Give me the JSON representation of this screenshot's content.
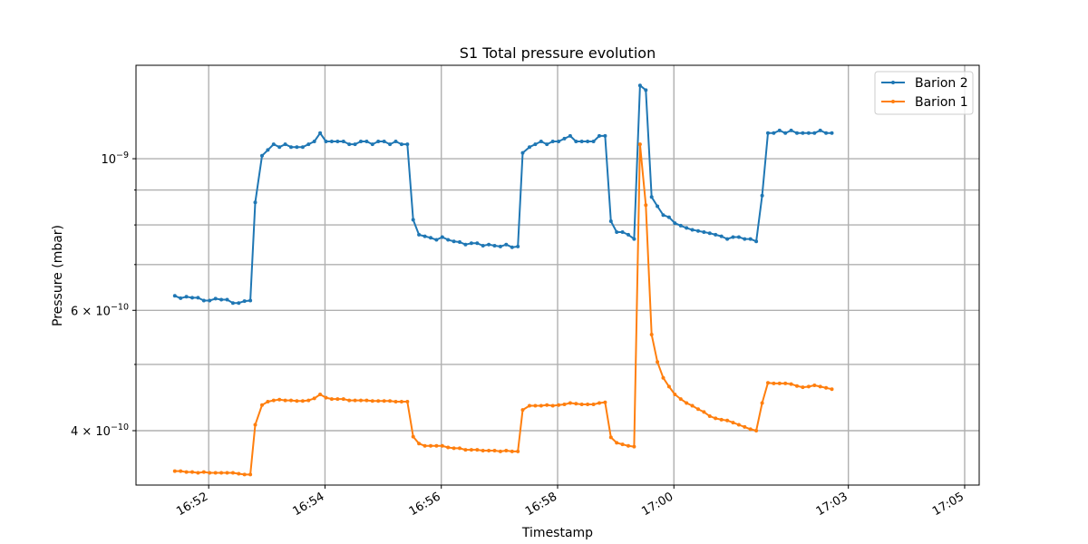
{
  "chart_data": {
    "type": "line",
    "title": "S1 Total pressure evolution",
    "xlabel": "Timestamp",
    "ylabel": "Pressure (mbar)",
    "x_axis": {
      "type": "time",
      "date": "2000-01-01",
      "range": [
        "16:50:45",
        "17:05:15"
      ],
      "ticks": [
        "16:52",
        "16:54",
        "16:56",
        "16:58",
        "17:00",
        "17:03",
        "17:05"
      ]
    },
    "y_axis": {
      "scale": "log",
      "range": [
        3.33e-10,
        1.37e-09
      ],
      "major_ticks": [
        {
          "value": 1e-09,
          "label": "10^-9"
        },
        {
          "value": 6e-10,
          "label": "6×10^-10"
        },
        {
          "value": 4e-10,
          "label": "4×10^-10"
        }
      ],
      "minor_grid_values": [
        3e-10,
        5e-10,
        7e-10,
        8e-10,
        9e-10
      ]
    },
    "grid": true,
    "legend_placement": "top-right",
    "series": [
      {
        "name": "Barion 2",
        "color": "#1f77b4",
        "points": [
          [
            "16:51:25",
            6.3e-10
          ],
          [
            "16:51:31",
            6.25e-10
          ],
          [
            "16:51:37",
            6.28e-10
          ],
          [
            "16:51:43",
            6.26e-10
          ],
          [
            "16:51:49",
            6.26e-10
          ],
          [
            "16:51:55",
            6.2e-10
          ],
          [
            "16:52:01",
            6.2e-10
          ],
          [
            "16:52:07",
            6.24e-10
          ],
          [
            "16:52:13",
            6.22e-10
          ],
          [
            "16:52:19",
            6.22e-10
          ],
          [
            "16:52:25",
            6.15e-10
          ],
          [
            "16:52:31",
            6.15e-10
          ],
          [
            "16:52:37",
            6.19e-10
          ],
          [
            "16:52:43",
            6.2e-10
          ],
          [
            "16:52:48",
            8.63e-10
          ],
          [
            "16:52:55",
            1.01e-09
          ],
          [
            "16:53:01",
            1.03e-09
          ],
          [
            "16:53:07",
            1.05e-09
          ],
          [
            "16:53:13",
            1.04e-09
          ],
          [
            "16:53:19",
            1.05e-09
          ],
          [
            "16:53:25",
            1.04e-09
          ],
          [
            "16:53:31",
            1.04e-09
          ],
          [
            "16:53:37",
            1.04e-09
          ],
          [
            "16:53:43",
            1.05e-09
          ],
          [
            "16:53:49",
            1.06e-09
          ],
          [
            "16:53:55",
            1.09e-09
          ],
          [
            "16:54:01",
            1.06e-09
          ],
          [
            "16:54:07",
            1.06e-09
          ],
          [
            "16:54:13",
            1.06e-09
          ],
          [
            "16:54:19",
            1.06e-09
          ],
          [
            "16:54:25",
            1.05e-09
          ],
          [
            "16:54:31",
            1.05e-09
          ],
          [
            "16:54:37",
            1.06e-09
          ],
          [
            "16:54:43",
            1.06e-09
          ],
          [
            "16:54:49",
            1.05e-09
          ],
          [
            "16:54:55",
            1.06e-09
          ],
          [
            "16:55:01",
            1.06e-09
          ],
          [
            "16:55:07",
            1.05e-09
          ],
          [
            "16:55:13",
            1.06e-09
          ],
          [
            "16:55:19",
            1.05e-09
          ],
          [
            "16:55:25",
            1.05e-09
          ],
          [
            "16:55:31",
            8.14e-10
          ],
          [
            "16:55:37",
            7.74e-10
          ],
          [
            "16:55:43",
            7.7e-10
          ],
          [
            "16:55:49",
            7.66e-10
          ],
          [
            "16:55:55",
            7.61e-10
          ],
          [
            "16:56:01",
            7.68e-10
          ],
          [
            "16:56:07",
            7.61e-10
          ],
          [
            "16:56:13",
            7.57e-10
          ],
          [
            "16:56:19",
            7.55e-10
          ],
          [
            "16:56:25",
            7.49e-10
          ],
          [
            "16:56:31",
            7.52e-10
          ],
          [
            "16:56:37",
            7.52e-10
          ],
          [
            "16:56:43",
            7.46e-10
          ],
          [
            "16:56:49",
            7.49e-10
          ],
          [
            "16:56:55",
            7.46e-10
          ],
          [
            "16:57:01",
            7.44e-10
          ],
          [
            "16:57:07",
            7.49e-10
          ],
          [
            "16:57:13",
            7.42e-10
          ],
          [
            "16:57:19",
            7.44e-10
          ],
          [
            "16:57:24",
            1.02e-09
          ],
          [
            "16:57:31",
            1.04e-09
          ],
          [
            "16:57:37",
            1.05e-09
          ],
          [
            "16:57:43",
            1.06e-09
          ],
          [
            "16:57:49",
            1.05e-09
          ],
          [
            "16:57:55",
            1.06e-09
          ],
          [
            "16:58:01",
            1.06e-09
          ],
          [
            "16:58:07",
            1.07e-09
          ],
          [
            "16:58:13",
            1.08e-09
          ],
          [
            "16:58:19",
            1.06e-09
          ],
          [
            "16:58:25",
            1.06e-09
          ],
          [
            "16:58:31",
            1.06e-09
          ],
          [
            "16:58:37",
            1.06e-09
          ],
          [
            "16:58:43",
            1.08e-09
          ],
          [
            "16:58:49",
            1.08e-09
          ],
          [
            "16:58:55",
            8.1e-10
          ],
          [
            "16:59:01",
            7.81e-10
          ],
          [
            "16:59:07",
            7.81e-10
          ],
          [
            "16:59:13",
            7.74e-10
          ],
          [
            "16:59:19",
            7.63e-10
          ],
          [
            "16:59:25",
            1.28e-09
          ],
          [
            "16:59:31",
            1.26e-09
          ],
          [
            "16:59:37",
            8.79e-10
          ],
          [
            "16:59:43",
            8.52e-10
          ],
          [
            "16:59:49",
            8.27e-10
          ],
          [
            "16:59:55",
            8.21e-10
          ],
          [
            "17:00:01",
            8.05e-10
          ],
          [
            "17:00:07",
            7.98e-10
          ],
          [
            "17:00:13",
            7.92e-10
          ],
          [
            "17:00:19",
            7.87e-10
          ],
          [
            "17:00:25",
            7.84e-10
          ],
          [
            "17:00:31",
            7.81e-10
          ],
          [
            "17:00:37",
            7.78e-10
          ],
          [
            "17:00:43",
            7.74e-10
          ],
          [
            "17:00:49",
            7.7e-10
          ],
          [
            "17:00:55",
            7.63e-10
          ],
          [
            "17:01:01",
            7.68e-10
          ],
          [
            "17:01:07",
            7.68e-10
          ],
          [
            "17:01:13",
            7.63e-10
          ],
          [
            "17:01:19",
            7.63e-10
          ],
          [
            "17:01:25",
            7.57e-10
          ],
          [
            "17:01:31",
            8.83e-10
          ],
          [
            "17:01:37",
            1.09e-09
          ],
          [
            "17:01:43",
            1.09e-09
          ],
          [
            "17:01:49",
            1.1e-09
          ],
          [
            "17:01:55",
            1.09e-09
          ],
          [
            "17:02:01",
            1.1e-09
          ],
          [
            "17:02:07",
            1.09e-09
          ],
          [
            "17:02:13",
            1.09e-09
          ],
          [
            "17:02:19",
            1.09e-09
          ],
          [
            "17:02:25",
            1.09e-09
          ],
          [
            "17:02:31",
            1.1e-09
          ],
          [
            "17:02:37",
            1.09e-09
          ],
          [
            "17:02:43",
            1.09e-09
          ]
        ]
      },
      {
        "name": "Barion 1",
        "color": "#ff7f0e",
        "points": [
          [
            "16:51:25",
            3.49e-10
          ],
          [
            "16:51:31",
            3.49e-10
          ],
          [
            "16:51:37",
            3.48e-10
          ],
          [
            "16:51:43",
            3.48e-10
          ],
          [
            "16:51:49",
            3.47e-10
          ],
          [
            "16:51:55",
            3.48e-10
          ],
          [
            "16:52:01",
            3.47e-10
          ],
          [
            "16:52:07",
            3.47e-10
          ],
          [
            "16:52:13",
            3.47e-10
          ],
          [
            "16:52:19",
            3.47e-10
          ],
          [
            "16:52:25",
            3.47e-10
          ],
          [
            "16:52:31",
            3.46e-10
          ],
          [
            "16:52:37",
            3.45e-10
          ],
          [
            "16:52:43",
            3.45e-10
          ],
          [
            "16:52:48",
            4.08e-10
          ],
          [
            "16:52:55",
            4.36e-10
          ],
          [
            "16:53:01",
            4.41e-10
          ],
          [
            "16:53:07",
            4.43e-10
          ],
          [
            "16:53:13",
            4.44e-10
          ],
          [
            "16:53:19",
            4.43e-10
          ],
          [
            "16:53:25",
            4.43e-10
          ],
          [
            "16:53:31",
            4.42e-10
          ],
          [
            "16:53:37",
            4.42e-10
          ],
          [
            "16:53:43",
            4.43e-10
          ],
          [
            "16:53:49",
            4.46e-10
          ],
          [
            "16:53:55",
            4.52e-10
          ],
          [
            "16:54:01",
            4.47e-10
          ],
          [
            "16:54:07",
            4.45e-10
          ],
          [
            "16:54:13",
            4.45e-10
          ],
          [
            "16:54:19",
            4.45e-10
          ],
          [
            "16:54:25",
            4.43e-10
          ],
          [
            "16:54:31",
            4.43e-10
          ],
          [
            "16:54:37",
            4.43e-10
          ],
          [
            "16:54:43",
            4.43e-10
          ],
          [
            "16:54:49",
            4.42e-10
          ],
          [
            "16:54:55",
            4.42e-10
          ],
          [
            "16:55:01",
            4.42e-10
          ],
          [
            "16:55:07",
            4.42e-10
          ],
          [
            "16:55:13",
            4.41e-10
          ],
          [
            "16:55:19",
            4.41e-10
          ],
          [
            "16:55:25",
            4.41e-10
          ],
          [
            "16:55:31",
            3.92e-10
          ],
          [
            "16:55:37",
            3.83e-10
          ],
          [
            "16:55:43",
            3.8e-10
          ],
          [
            "16:55:49",
            3.8e-10
          ],
          [
            "16:55:55",
            3.8e-10
          ],
          [
            "16:56:01",
            3.8e-10
          ],
          [
            "16:56:07",
            3.78e-10
          ],
          [
            "16:56:13",
            3.77e-10
          ],
          [
            "16:56:19",
            3.77e-10
          ],
          [
            "16:56:25",
            3.75e-10
          ],
          [
            "16:56:31",
            3.75e-10
          ],
          [
            "16:56:37",
            3.75e-10
          ],
          [
            "16:56:43",
            3.74e-10
          ],
          [
            "16:56:49",
            3.74e-10
          ],
          [
            "16:56:55",
            3.74e-10
          ],
          [
            "16:57:01",
            3.73e-10
          ],
          [
            "16:57:07",
            3.74e-10
          ],
          [
            "16:57:13",
            3.73e-10
          ],
          [
            "16:57:19",
            3.73e-10
          ],
          [
            "16:57:24",
            4.29e-10
          ],
          [
            "16:57:31",
            4.35e-10
          ],
          [
            "16:57:37",
            4.35e-10
          ],
          [
            "16:57:43",
            4.35e-10
          ],
          [
            "16:57:49",
            4.36e-10
          ],
          [
            "16:57:55",
            4.35e-10
          ],
          [
            "16:58:01",
            4.36e-10
          ],
          [
            "16:58:07",
            4.37e-10
          ],
          [
            "16:58:13",
            4.39e-10
          ],
          [
            "16:58:19",
            4.38e-10
          ],
          [
            "16:58:25",
            4.37e-10
          ],
          [
            "16:58:31",
            4.37e-10
          ],
          [
            "16:58:37",
            4.37e-10
          ],
          [
            "16:58:43",
            4.39e-10
          ],
          [
            "16:58:49",
            4.4e-10
          ],
          [
            "16:58:55",
            3.91e-10
          ],
          [
            "16:59:01",
            3.84e-10
          ],
          [
            "16:59:07",
            3.82e-10
          ],
          [
            "16:59:13",
            3.8e-10
          ],
          [
            "16:59:19",
            3.79e-10
          ],
          [
            "16:59:25",
            1.05e-09
          ],
          [
            "16:59:31",
            8.55e-10
          ],
          [
            "16:59:37",
            5.53e-10
          ],
          [
            "16:59:43",
            5.04e-10
          ],
          [
            "16:59:49",
            4.78e-10
          ],
          [
            "16:59:55",
            4.64e-10
          ],
          [
            "17:00:01",
            4.52e-10
          ],
          [
            "17:00:07",
            4.45e-10
          ],
          [
            "17:00:13",
            4.39e-10
          ],
          [
            "17:00:19",
            4.35e-10
          ],
          [
            "17:00:25",
            4.3e-10
          ],
          [
            "17:00:31",
            4.26e-10
          ],
          [
            "17:00:37",
            4.2e-10
          ],
          [
            "17:00:43",
            4.17e-10
          ],
          [
            "17:00:49",
            4.15e-10
          ],
          [
            "17:00:55",
            4.14e-10
          ],
          [
            "17:01:01",
            4.11e-10
          ],
          [
            "17:01:07",
            4.08e-10
          ],
          [
            "17:01:13",
            4.05e-10
          ],
          [
            "17:01:19",
            4.02e-10
          ],
          [
            "17:01:25",
            4e-10
          ],
          [
            "17:01:31",
            4.39e-10
          ],
          [
            "17:01:37",
            4.7e-10
          ],
          [
            "17:01:43",
            4.69e-10
          ],
          [
            "17:01:49",
            4.69e-10
          ],
          [
            "17:01:55",
            4.69e-10
          ],
          [
            "17:02:01",
            4.68e-10
          ],
          [
            "17:02:07",
            4.65e-10
          ],
          [
            "17:02:13",
            4.63e-10
          ],
          [
            "17:02:19",
            4.64e-10
          ],
          [
            "17:02:25",
            4.66e-10
          ],
          [
            "17:02:31",
            4.64e-10
          ],
          [
            "17:02:37",
            4.62e-10
          ],
          [
            "17:02:43",
            4.6e-10
          ]
        ]
      }
    ]
  }
}
